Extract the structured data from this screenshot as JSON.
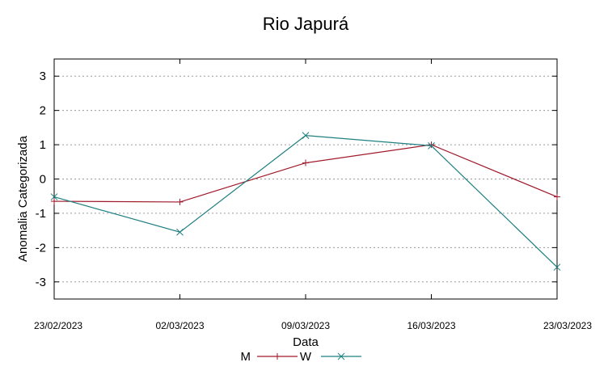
{
  "chart_data": {
    "type": "line",
    "title": "Rio Japurá",
    "xlabel": "Data",
    "ylabel": "Anomalia Categorizada",
    "categories": [
      "23/02/2023",
      "02/03/2023",
      "09/03/2023",
      "16/03/2023",
      "23/03/2023"
    ],
    "ylim": [
      -3.5,
      3.5
    ],
    "yticks": [
      "3",
      "2",
      "1",
      "0",
      "-1",
      "-2",
      "-3"
    ],
    "ytick_values": [
      3,
      2,
      1,
      0,
      -1,
      -2,
      -3
    ],
    "grid": "horizontal dotted",
    "legend_position": "bottom",
    "series": [
      {
        "name": "M",
        "color": "#a0192a",
        "marker": "plus",
        "values": [
          -0.65,
          -0.67,
          0.47,
          1.0,
          -0.52
        ]
      },
      {
        "name": "W",
        "color": "#1f7f80",
        "marker": "cross",
        "values": [
          -0.52,
          -1.55,
          1.27,
          0.97,
          -2.57
        ]
      }
    ]
  }
}
